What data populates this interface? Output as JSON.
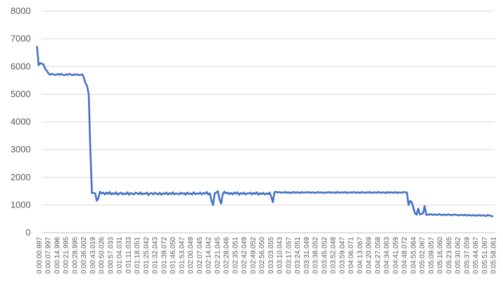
{
  "chart_data": {
    "type": "line",
    "title": "",
    "xlabel": "",
    "ylabel": "",
    "ylim": [
      0,
      8000
    ],
    "yticks": [
      0,
      1000,
      2000,
      3000,
      4000,
      5000,
      6000,
      7000,
      8000
    ],
    "grid": "horizontal",
    "legend": "none",
    "colors": {
      "series": "#4472c4",
      "grid": "#d9d9d9",
      "text": "#595959"
    },
    "x_tick_labels": [
      "0:00:00.997",
      "0:00:07.997",
      "0:00:14.996",
      "0:00:21.995",
      "0:00:28.995",
      "0:00:36.002",
      "0:00:43.019",
      "0:00:50.026",
      "0:00:57.033",
      "0:01:04.031",
      "0:01:11.033",
      "0:01:18.051",
      "0:01:25.042",
      "0:01:32.043",
      "0:01:39.072",
      "0:01:46.050",
      "0:01:53.047",
      "0:02:00.049",
      "0:02:07.045",
      "0:02:14.042",
      "0:02:21.045",
      "0:02:28.046",
      "0:02:35.051",
      "0:02:42.049",
      "0:02:49.052",
      "0:02:56.050",
      "0:03:03.055",
      "0:03:10.043",
      "0:03:17.057",
      "0:03:24.051",
      "0:03:31.049",
      "0:03:38.052",
      "0:03:45.052",
      "0:03:52.048",
      "0:03:59.047",
      "0:04:06.071",
      "0:04:13.067",
      "0:04:20.069",
      "0:04:27.058",
      "0:04:34.063",
      "0:04:41.059",
      "0:04:48.072",
      "0:04:55.064",
      "0:05:02.067",
      "0:05:09.057",
      "0:05:16.060",
      "0:05:23.065",
      "0:05:30.062",
      "0:05:37.059",
      "0:05:44.067",
      "0:05:51.067",
      "0:05:58.061"
    ],
    "x_range_seconds": [
      0.997,
      358.061
    ],
    "series": [
      {
        "values": [
          6720,
          6050,
          6120,
          6100,
          6080,
          5920,
          5850,
          5760,
          5700,
          5740,
          5720,
          5700,
          5710,
          5730,
          5700,
          5740,
          5700,
          5690,
          5720,
          5700,
          5740,
          5710,
          5690,
          5720,
          5700,
          5720,
          5690,
          5700,
          5720,
          5600,
          5400,
          5300,
          5000,
          3000,
          1430,
          1440,
          1420,
          1150,
          1250,
          1480,
          1420,
          1450,
          1380,
          1450,
          1400,
          1470,
          1380,
          1430,
          1390,
          1460,
          1370,
          1420,
          1450,
          1380,
          1420,
          1390,
          1460,
          1370,
          1430,
          1410,
          1380,
          1450,
          1420,
          1390,
          1460,
          1380,
          1420,
          1400,
          1450,
          1360,
          1420,
          1430,
          1380,
          1450,
          1410,
          1380,
          1440,
          1370,
          1420,
          1400,
          1450,
          1380,
          1430,
          1390,
          1460,
          1380,
          1420,
          1410,
          1380,
          1450,
          1400,
          1430,
          1370,
          1450,
          1400,
          1420,
          1380,
          1460,
          1390,
          1420,
          1400,
          1450,
          1380,
          1430,
          1410,
          1470,
          1380,
          1420,
          1150,
          1000,
          1420,
          1450,
          1500,
          1200,
          1050,
          1400,
          1480,
          1420,
          1450,
          1390,
          1440,
          1380,
          1450,
          1410,
          1460,
          1370,
          1430,
          1400,
          1450,
          1380,
          1420,
          1410,
          1450,
          1380,
          1440,
          1400,
          1460,
          1370,
          1430,
          1390,
          1440,
          1380,
          1420,
          1390,
          1450,
          1300,
          1100,
          1460,
          1480,
          1450,
          1470,
          1440,
          1460,
          1450,
          1470,
          1440,
          1460,
          1430,
          1450,
          1470,
          1440,
          1460,
          1450,
          1430,
          1470,
          1440,
          1460,
          1450,
          1470,
          1440,
          1450,
          1460,
          1430,
          1450,
          1470,
          1440,
          1460,
          1450,
          1430,
          1460,
          1450,
          1470,
          1440,
          1450,
          1460,
          1430,
          1470,
          1450,
          1440,
          1460,
          1450,
          1470,
          1430,
          1450,
          1460,
          1440,
          1470,
          1450,
          1440,
          1460,
          1430,
          1470,
          1450,
          1440,
          1460,
          1450,
          1470,
          1430,
          1450,
          1460,
          1440,
          1470,
          1450,
          1440,
          1460,
          1450,
          1430,
          1470,
          1440,
          1460,
          1450,
          1440,
          1470,
          1430,
          1460,
          1450,
          1440,
          1470,
          1460,
          1450,
          1000,
          1150,
          1100,
          900,
          700,
          650,
          870,
          660,
          680,
          700,
          960,
          640,
          660,
          650,
          670,
          640,
          660,
          650,
          640,
          670,
          650,
          630,
          660,
          640,
          650,
          660,
          640,
          630,
          660,
          650,
          640,
          620,
          650,
          640,
          630,
          650,
          620,
          640,
          630,
          620,
          640,
          610,
          630,
          620,
          640,
          610,
          630,
          620,
          600,
          640,
          620,
          610,
          590
        ]
      }
    ]
  }
}
